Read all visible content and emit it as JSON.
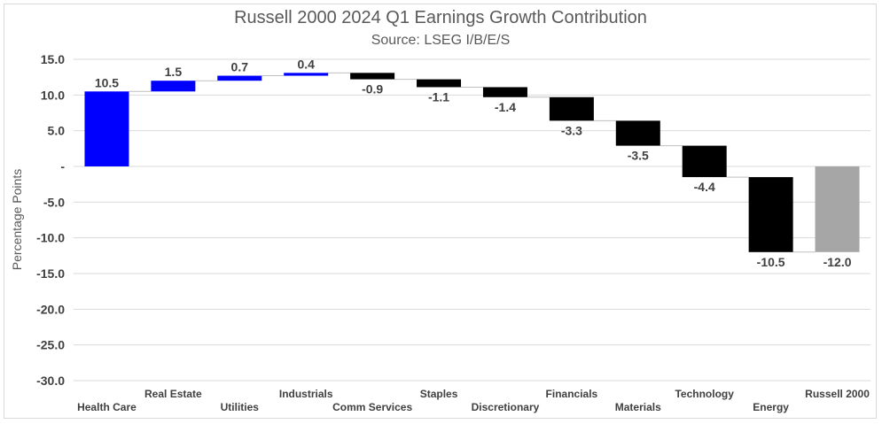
{
  "chart_data": {
    "type": "waterfall",
    "title": "Russell 2000 2024 Q1 Earnings Growth Contribution",
    "subtitle": "Source: LSEG I/B/E/S",
    "ylabel": "Percentage Points",
    "xlabel": "",
    "ylim": [
      -30,
      15
    ],
    "yticks": [
      15,
      10,
      5,
      0,
      -5,
      -10,
      -15,
      -20,
      -25,
      -30
    ],
    "ytick_labels": [
      "15.0",
      "10.0",
      "5.0",
      "-",
      "-5.0",
      "-10.0",
      "-15.0",
      "-20.0",
      "-25.0",
      "-30.0"
    ],
    "grid": true,
    "legend": "none",
    "categories": [
      "Health Care",
      "Real Estate",
      "Utilities",
      "Industrials",
      "Comm Services",
      "Staples",
      "Discretionary",
      "Financials",
      "Materials",
      "Technology",
      "Energy",
      "Russell 2000"
    ],
    "values": [
      10.5,
      1.5,
      0.7,
      0.4,
      -0.9,
      -1.1,
      -1.4,
      -3.3,
      -3.5,
      -4.4,
      -10.5,
      -12.0
    ],
    "value_labels": [
      "10.5",
      "1.5",
      "0.7",
      "0.4",
      "-0.9",
      "-1.1",
      "-1.4",
      "-3.3",
      "-3.5",
      "-4.4",
      "-10.5",
      "-12.0"
    ],
    "total_index": 11,
    "colors": {
      "positive": "#0000ff",
      "negative": "#000000",
      "total": "#a6a6a6",
      "grid": "#d9d9d9",
      "connector": "#bfbfbf"
    }
  }
}
